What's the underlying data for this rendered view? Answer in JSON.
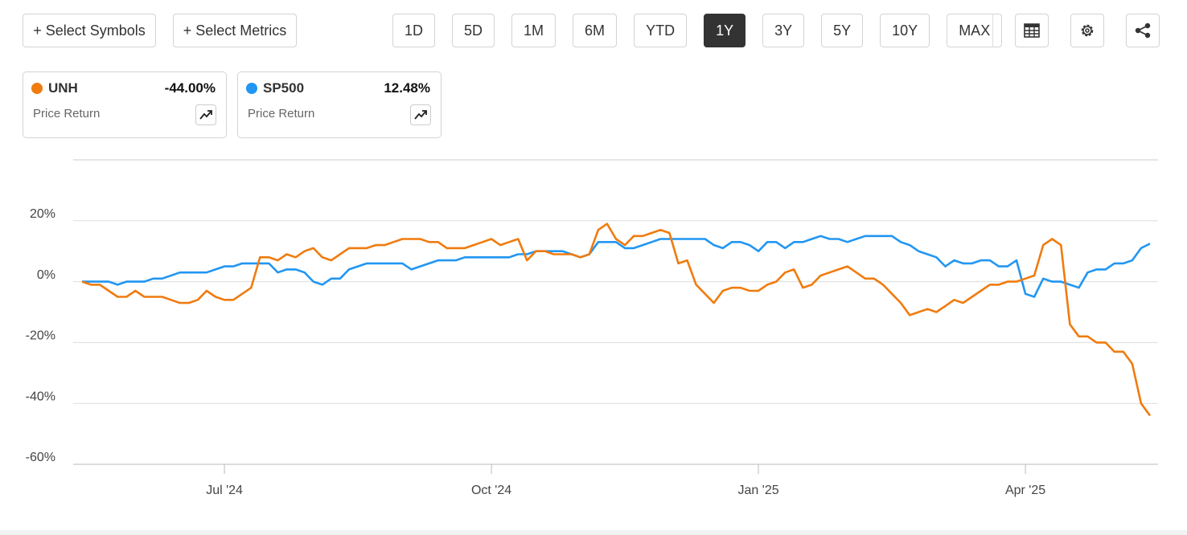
{
  "toolbar": {
    "buttons": [
      "+ Select Symbols",
      "+ Select Metrics"
    ],
    "ranges": [
      "1D",
      "5D",
      "1M",
      "6M",
      "YTD",
      "1Y",
      "3Y",
      "5Y",
      "10Y",
      "MAX"
    ],
    "active_range": "1Y"
  },
  "cards": [
    {
      "metric": "Price Return",
      "return": "-44.00%"
    },
    {
      "metric": "Price Return",
      "return": "12.48%"
    }
  ],
  "chart_data": {
    "type": "line",
    "categories": [
      null,
      null,
      null,
      null,
      null,
      null,
      null,
      null,
      null,
      null,
      null,
      null,
      null,
      null,
      null,
      null,
      "Jul '24",
      null,
      null,
      null,
      null,
      null,
      null,
      null,
      null,
      null,
      null,
      null,
      null,
      null,
      null,
      null,
      null,
      null,
      null,
      null,
      null,
      null,
      null,
      null,
      null,
      null,
      null,
      null,
      null,
      null,
      "Oct '24",
      null,
      null,
      null,
      null,
      null,
      null,
      null,
      null,
      null,
      null,
      null,
      null,
      null,
      null,
      null,
      null,
      null,
      null,
      null,
      null,
      null,
      null,
      null,
      null,
      null,
      null,
      null,
      null,
      null,
      "Jan '25",
      null,
      null,
      null,
      null,
      null,
      null,
      null,
      null,
      null,
      null,
      null,
      null,
      null,
      null,
      null,
      null,
      null,
      null,
      null,
      null,
      null,
      null,
      null,
      null,
      null,
      null,
      null,
      null,
      null,
      "Apr '25",
      null,
      null,
      null,
      null,
      null,
      null,
      null,
      null,
      null,
      null,
      null,
      null,
      null,
      null
    ],
    "series": [
      {
        "name": "UNH",
        "color": "#f07b0f",
        "values": [
          0,
          -1,
          -1,
          -3,
          -5,
          -5,
          -3,
          -5,
          -5,
          -5,
          -6,
          -7,
          -7,
          -6,
          -3,
          -5,
          -6,
          -6,
          -4,
          -2,
          8,
          8,
          7,
          9,
          8,
          10,
          11,
          8,
          7,
          9,
          11,
          11,
          11,
          12,
          12,
          13,
          14,
          14,
          14,
          13,
          13,
          11,
          11,
          11,
          12,
          13,
          14,
          12,
          13,
          14,
          7,
          10,
          10,
          9,
          9,
          9,
          8,
          9,
          17,
          19,
          14,
          12,
          15,
          15,
          16,
          17,
          16,
          6,
          7,
          -1,
          -4,
          -7,
          -3,
          -2,
          -2,
          -3,
          -3,
          -1,
          0,
          3,
          4,
          -2,
          -1,
          2,
          3,
          4,
          5,
          3,
          1,
          1,
          -1,
          -4,
          -7,
          -11,
          -10,
          -9,
          -10,
          -8,
          -6,
          -7,
          -5,
          -3,
          -1,
          -1,
          0,
          0,
          1,
          2,
          12,
          14,
          12,
          -14,
          -18,
          -18,
          -20,
          -20,
          -23,
          -23,
          -27,
          -40,
          -44
        ]
      },
      {
        "name": "SP500",
        "color": "#2196f3",
        "values": [
          0,
          0,
          0,
          0,
          -1,
          0,
          0,
          0,
          1,
          1,
          2,
          3,
          3,
          3,
          3,
          4,
          5,
          5,
          6,
          6,
          6,
          6,
          3,
          4,
          4,
          3,
          0,
          -1,
          1,
          1,
          4,
          5,
          6,
          6,
          6,
          6,
          6,
          4,
          5,
          6,
          7,
          7,
          7,
          8,
          8,
          8,
          8,
          8,
          8,
          9,
          9,
          10,
          10,
          10,
          10,
          9,
          8,
          9,
          13,
          13,
          13,
          11,
          11,
          12,
          13,
          14,
          14,
          14,
          14,
          14,
          14,
          12,
          11,
          13,
          13,
          12,
          10,
          13,
          13,
          11,
          13,
          13,
          14,
          15,
          14,
          14,
          13,
          14,
          15,
          15,
          15,
          15,
          13,
          12,
          10,
          9,
          8,
          5,
          7,
          6,
          6,
          7,
          7,
          5,
          5,
          7,
          -4,
          -5,
          1,
          0,
          0,
          -1,
          -2,
          3,
          4,
          4,
          6,
          6,
          7,
          11,
          12.48
        ]
      }
    ],
    "ylim": [
      -60,
      40
    ],
    "yticks": [
      {
        "value": -60,
        "label": "-60%"
      },
      {
        "value": -40,
        "label": "-40%"
      },
      {
        "value": -20,
        "label": "-20%"
      },
      {
        "value": 0,
        "label": "0%"
      },
      {
        "value": 20,
        "label": "20%"
      }
    ],
    "grid": true
  }
}
